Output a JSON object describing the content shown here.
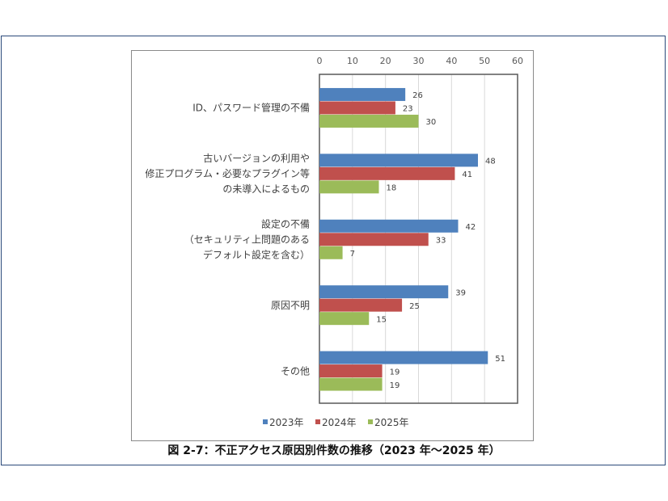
{
  "chart_data": {
    "type": "bar",
    "orientation": "horizontal",
    "categories": [
      [
        "ID、パスワード管理の不備"
      ],
      [
        "古いバージョンの利用や",
        "修正プログラム・必要なプラグイン等",
        "の未導入によるもの"
      ],
      [
        "設定の不備",
        "（セキュリティ上問題のある",
        "デフォルト設定を含む）"
      ],
      [
        "原因不明"
      ],
      [
        "その他"
      ]
    ],
    "series": [
      {
        "name": "2023年",
        "color": "#4f81bd",
        "values": [
          26,
          48,
          42,
          39,
          51
        ]
      },
      {
        "name": "2024年",
        "color": "#c0504d",
        "values": [
          23,
          41,
          33,
          25,
          19
        ]
      },
      {
        "name": "2025年",
        "color": "#9bbb59",
        "values": [
          30,
          18,
          7,
          15,
          19
        ]
      }
    ],
    "xlim": [
      0,
      60
    ],
    "xticks": [
      0,
      10,
      20,
      30,
      40,
      50,
      60
    ],
    "xaxis_position": "top",
    "grid": true,
    "data_labels": true,
    "legend": "bottom"
  },
  "caption": "図 2-7：不正アクセス原因別件数の推移（2023 年～2025 年）"
}
